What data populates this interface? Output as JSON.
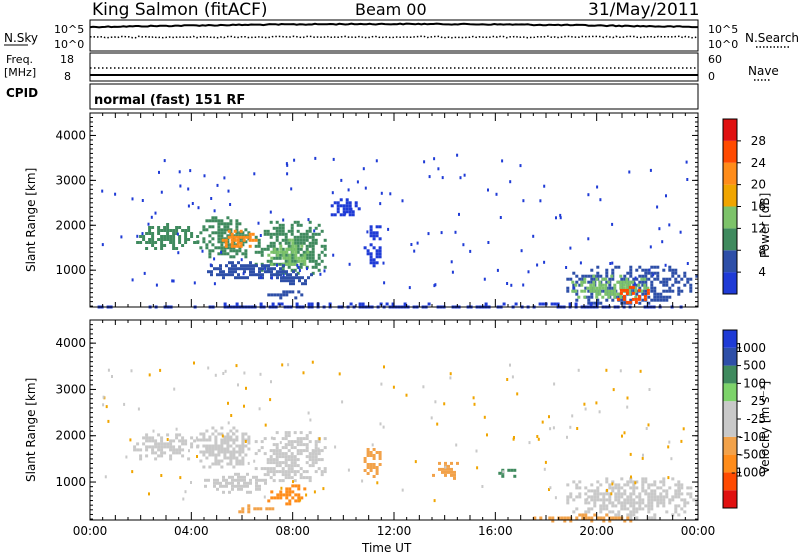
{
  "header": {
    "station": "King Salmon (fitACF)",
    "beam": "Beam 00",
    "date": "31/May/2011"
  },
  "summary": {
    "nsky_label": "N.Sky",
    "nsky_ticks": [
      "10^5",
      "10^0"
    ],
    "nsearch_label": "N.Search",
    "nsearch_ticks": [
      "10^5",
      "10^0"
    ],
    "freq_label": "Freq.",
    "freq_unit": "[MHz]",
    "freq_ticks": [
      "18",
      "8"
    ],
    "nave_label": "Nave",
    "nave_ticks": [
      "60",
      "0"
    ],
    "cpid_label": "CPID",
    "cpid_text": "normal (fast) 151 RF"
  },
  "colors": {
    "power": [
      "#1f3bd6",
      "#2e4fa8",
      "#3f8a5e",
      "#7dc36a",
      "#f0a500",
      "#ff8c1a",
      "#ff4a00",
      "#e01010"
    ],
    "velocity": [
      "#e01010",
      "#ff4a00",
      "#ff8c1a",
      "#f2a24a",
      "#c9c9c9",
      "#c9c9c9",
      "#7dd36a",
      "#3f8a5e",
      "#2e4fa8",
      "#1f3bd6"
    ]
  },
  "chart_data": [
    {
      "type": "heatmap",
      "name": "power",
      "ylabel": "Slant Range [km]",
      "xlabel": "",
      "x_ticks": [
        "00:00",
        "04:00",
        "08:00",
        "12:00",
        "16:00",
        "20:00",
        "00:00"
      ],
      "y_ticks": [
        "1000",
        "2000",
        "3000",
        "4000"
      ],
      "xlim_hours": [
        0,
        24
      ],
      "ylim_km": [
        180,
        4500
      ],
      "colorbar": {
        "label": "Power [dB]",
        "ticks": [
          "4",
          "8",
          "12",
          "16",
          "20",
          "24",
          "28"
        ]
      },
      "regions": [
        {
          "t0": 1.7,
          "t1": 4.2,
          "r0": 1500,
          "r1": 2050,
          "level": 2
        },
        {
          "t0": 4.2,
          "t1": 6.3,
          "r0": 1300,
          "r1": 2200,
          "level": 2
        },
        {
          "t0": 5.2,
          "t1": 6.6,
          "r0": 1500,
          "r1": 1900,
          "level": 5
        },
        {
          "t0": 6.5,
          "t1": 9.3,
          "r0": 900,
          "r1": 2100,
          "level": 2
        },
        {
          "t0": 7.0,
          "t1": 8.6,
          "r0": 1100,
          "r1": 1700,
          "level": 3
        },
        {
          "t0": 4.5,
          "t1": 7.8,
          "r0": 800,
          "r1": 1200,
          "level": 1
        },
        {
          "t0": 7.5,
          "t1": 8.7,
          "r0": 700,
          "r1": 1000,
          "level": 1
        },
        {
          "t0": 7.0,
          "t1": 8.5,
          "r0": 400,
          "r1": 550,
          "level": 1
        },
        {
          "t0": 9.5,
          "t1": 10.6,
          "r0": 2200,
          "r1": 2600,
          "level": 0
        },
        {
          "t0": 10.8,
          "t1": 11.5,
          "r0": 1000,
          "r1": 2000,
          "level": 0
        },
        {
          "t0": 18.8,
          "t1": 24.0,
          "r0": 250,
          "r1": 1100,
          "level": 1
        },
        {
          "t0": 19.0,
          "t1": 22.0,
          "r0": 400,
          "r1": 900,
          "level": 3
        },
        {
          "t0": 20.8,
          "t1": 22.0,
          "r0": 280,
          "r1": 650,
          "level": 6
        },
        {
          "t0": 0.3,
          "t1": 24.0,
          "r0": 180,
          "r1": 280,
          "level": 0
        }
      ]
    },
    {
      "type": "heatmap",
      "name": "velocity",
      "ylabel": "Slant Range [km]",
      "xlabel": "Time UT",
      "x_ticks": [
        "00:00",
        "04:00",
        "08:00",
        "12:00",
        "16:00",
        "20:00",
        "00:00"
      ],
      "y_ticks": [
        "1000",
        "2000",
        "3000",
        "4000"
      ],
      "xlim_hours": [
        0,
        24
      ],
      "ylim_km": [
        180,
        4500
      ],
      "colorbar": {
        "label": "Velocity [m s⁻¹]",
        "ticks": [
          "1000",
          "500",
          "100",
          "25",
          "-25",
          "-100",
          "-500",
          "-1000"
        ]
      },
      "regions": [
        {
          "t0": 1.7,
          "t1": 4.2,
          "r0": 1500,
          "r1": 2050,
          "level": 4
        },
        {
          "t0": 4.2,
          "t1": 6.3,
          "r0": 1300,
          "r1": 2200,
          "level": 4
        },
        {
          "t0": 6.5,
          "t1": 9.3,
          "r0": 1000,
          "r1": 2100,
          "level": 4
        },
        {
          "t0": 4.5,
          "t1": 7.0,
          "r0": 800,
          "r1": 1200,
          "level": 4
        },
        {
          "t0": 7.0,
          "t1": 8.6,
          "r0": 550,
          "r1": 950,
          "level": 2
        },
        {
          "t0": 5.5,
          "t1": 7.5,
          "r0": 380,
          "r1": 520,
          "level": 3
        },
        {
          "t0": 10.8,
          "t1": 11.5,
          "r0": 1100,
          "r1": 1800,
          "level": 3
        },
        {
          "t0": 13.5,
          "t1": 14.5,
          "r0": 1100,
          "r1": 1500,
          "level": 3
        },
        {
          "t0": 16.0,
          "t1": 16.8,
          "r0": 1100,
          "r1": 1350,
          "level": 7
        },
        {
          "t0": 18.8,
          "t1": 24.0,
          "r0": 250,
          "r1": 1100,
          "level": 4
        },
        {
          "t0": 17.5,
          "t1": 21.5,
          "r0": 180,
          "r1": 320,
          "level": 3
        }
      ]
    }
  ]
}
